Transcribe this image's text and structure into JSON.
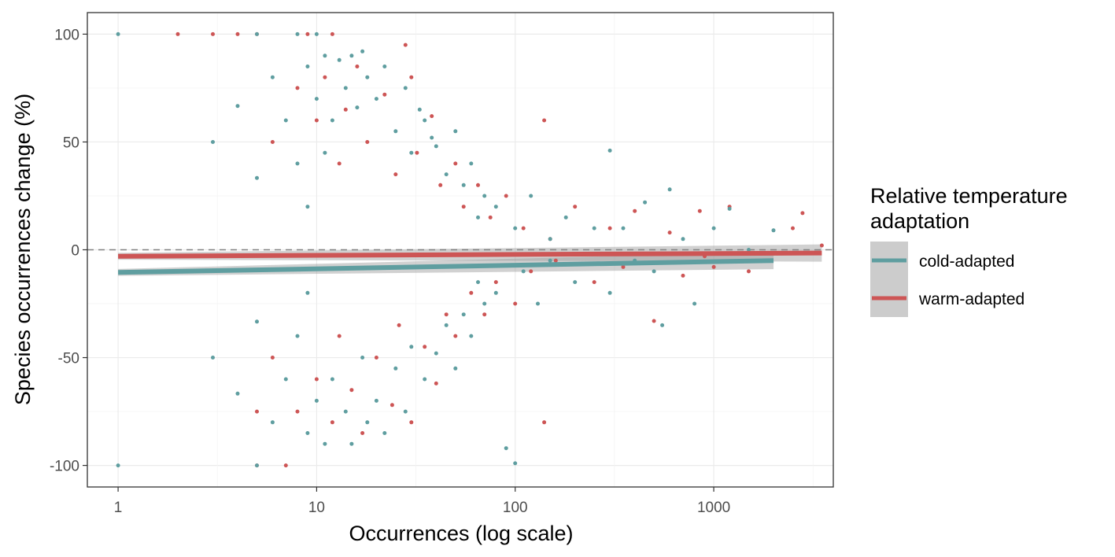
{
  "chart_data": {
    "type": "scatter",
    "xlabel": "Occurrences (log scale)",
    "ylabel": "Species occurrences change (%)",
    "x_scale": "log10",
    "xlim": [
      0.7,
      4000
    ],
    "ylim": [
      -110,
      110
    ],
    "x_ticks": [
      1,
      10,
      100,
      1000
    ],
    "x_tick_labels": [
      "1",
      "10",
      "100",
      "1000"
    ],
    "y_ticks": [
      100,
      50,
      0,
      -50,
      -100
    ],
    "y_tick_labels": [
      "100",
      "50",
      "0",
      "-50",
      "-100"
    ],
    "reference_line": {
      "y": 0,
      "style": "dashed"
    },
    "grid": true,
    "legend": {
      "title": "Relative temperature adaptation",
      "title_lines": [
        "Relative temperature",
        "adaptation"
      ],
      "position": "right",
      "entries": [
        "cold-adapted",
        "warm-adapted"
      ]
    },
    "series": [
      {
        "name": "cold-adapted",
        "color": "#5F9EA0",
        "trend": {
          "x": [
            1,
            2000
          ],
          "y": [
            -10.5,
            -5.0
          ],
          "ci": 4
        },
        "points": [
          [
            1,
            100
          ],
          [
            1,
            -100
          ],
          [
            3,
            50
          ],
          [
            3,
            -50
          ],
          [
            4,
            66.7
          ],
          [
            4,
            -66.7
          ],
          [
            5,
            100
          ],
          [
            5,
            33.3
          ],
          [
            5,
            -33.3
          ],
          [
            5,
            -100
          ],
          [
            6,
            80
          ],
          [
            6,
            -80
          ],
          [
            7,
            60
          ],
          [
            7,
            -60
          ],
          [
            8,
            100
          ],
          [
            8,
            40
          ],
          [
            8,
            -40
          ],
          [
            9,
            85
          ],
          [
            9,
            -85
          ],
          [
            9,
            20
          ],
          [
            9,
            -20
          ],
          [
            10,
            100
          ],
          [
            10,
            70
          ],
          [
            10,
            -70
          ],
          [
            11,
            90
          ],
          [
            11,
            -90
          ],
          [
            11,
            45
          ],
          [
            12,
            60
          ],
          [
            12,
            -60
          ],
          [
            13,
            88
          ],
          [
            14,
            75
          ],
          [
            14,
            -75
          ],
          [
            15,
            90
          ],
          [
            15,
            -90
          ],
          [
            16,
            66
          ],
          [
            17,
            92
          ],
          [
            17,
            -50
          ],
          [
            18,
            80
          ],
          [
            18,
            -80
          ],
          [
            20,
            70
          ],
          [
            20,
            -70
          ],
          [
            22,
            85
          ],
          [
            22,
            -85
          ],
          [
            25,
            55
          ],
          [
            25,
            -55
          ],
          [
            28,
            75
          ],
          [
            28,
            -75
          ],
          [
            30,
            45
          ],
          [
            30,
            -45
          ],
          [
            33,
            65
          ],
          [
            35,
            60
          ],
          [
            35,
            -60
          ],
          [
            38,
            52
          ],
          [
            40,
            48
          ],
          [
            40,
            -48
          ],
          [
            45,
            35
          ],
          [
            45,
            -35
          ],
          [
            50,
            55
          ],
          [
            50,
            -55
          ],
          [
            55,
            30
          ],
          [
            55,
            -30
          ],
          [
            60,
            40
          ],
          [
            60,
            -40
          ],
          [
            65,
            15
          ],
          [
            65,
            -15
          ],
          [
            70,
            25
          ],
          [
            70,
            -25
          ],
          [
            80,
            20
          ],
          [
            80,
            -20
          ],
          [
            90,
            -92
          ],
          [
            100,
            -99
          ],
          [
            100,
            10
          ],
          [
            110,
            -10
          ],
          [
            120,
            25
          ],
          [
            130,
            -25
          ],
          [
            150,
            5
          ],
          [
            150,
            -5
          ],
          [
            180,
            15
          ],
          [
            200,
            -15
          ],
          [
            250,
            10
          ],
          [
            300,
            46
          ],
          [
            300,
            -20
          ],
          [
            350,
            10
          ],
          [
            400,
            -5
          ],
          [
            450,
            22
          ],
          [
            500,
            -10
          ],
          [
            550,
            -35
          ],
          [
            600,
            28
          ],
          [
            700,
            5
          ],
          [
            800,
            -25
          ],
          [
            1000,
            10
          ],
          [
            1200,
            19
          ],
          [
            1500,
            0
          ],
          [
            2000,
            9
          ]
        ]
      },
      {
        "name": "warm-adapted",
        "color": "#CD5555",
        "trend": {
          "x": [
            1,
            3500
          ],
          "y": [
            -3.0,
            -1.5
          ],
          "ci": 4
        },
        "points": [
          [
            2,
            100
          ],
          [
            3,
            100
          ],
          [
            4,
            100
          ],
          [
            5,
            100
          ],
          [
            5,
            -75
          ],
          [
            5,
            -100
          ],
          [
            6,
            50
          ],
          [
            6,
            -50
          ],
          [
            7,
            -100
          ],
          [
            8,
            75
          ],
          [
            8,
            -75
          ],
          [
            9,
            100
          ],
          [
            10,
            60
          ],
          [
            10,
            -60
          ],
          [
            11,
            80
          ],
          [
            12,
            100
          ],
          [
            12,
            -80
          ],
          [
            13,
            40
          ],
          [
            13,
            -40
          ],
          [
            14,
            65
          ],
          [
            15,
            -65
          ],
          [
            16,
            85
          ],
          [
            17,
            -85
          ],
          [
            18,
            50
          ],
          [
            20,
            -50
          ],
          [
            22,
            72
          ],
          [
            24,
            -72
          ],
          [
            25,
            35
          ],
          [
            26,
            -35
          ],
          [
            28,
            95
          ],
          [
            30,
            80
          ],
          [
            30,
            -80
          ],
          [
            32,
            45
          ],
          [
            35,
            -45
          ],
          [
            38,
            62
          ],
          [
            40,
            -62
          ],
          [
            42,
            30
          ],
          [
            45,
            -30
          ],
          [
            50,
            40
          ],
          [
            50,
            -40
          ],
          [
            55,
            20
          ],
          [
            60,
            -20
          ],
          [
            65,
            30
          ],
          [
            70,
            -30
          ],
          [
            75,
            15
          ],
          [
            80,
            -15
          ],
          [
            90,
            25
          ],
          [
            100,
            -25
          ],
          [
            110,
            10
          ],
          [
            120,
            -10
          ],
          [
            140,
            60
          ],
          [
            140,
            -80
          ],
          [
            150,
            5
          ],
          [
            160,
            -5
          ],
          [
            200,
            20
          ],
          [
            250,
            -15
          ],
          [
            300,
            10
          ],
          [
            350,
            -8
          ],
          [
            400,
            18
          ],
          [
            500,
            -33
          ],
          [
            600,
            8
          ],
          [
            700,
            -12
          ],
          [
            850,
            18
          ],
          [
            900,
            -3
          ],
          [
            1000,
            -8
          ],
          [
            1200,
            20
          ],
          [
            1500,
            -10
          ],
          [
            2500,
            10
          ],
          [
            2800,
            17
          ],
          [
            3500,
            2
          ]
        ]
      }
    ]
  }
}
